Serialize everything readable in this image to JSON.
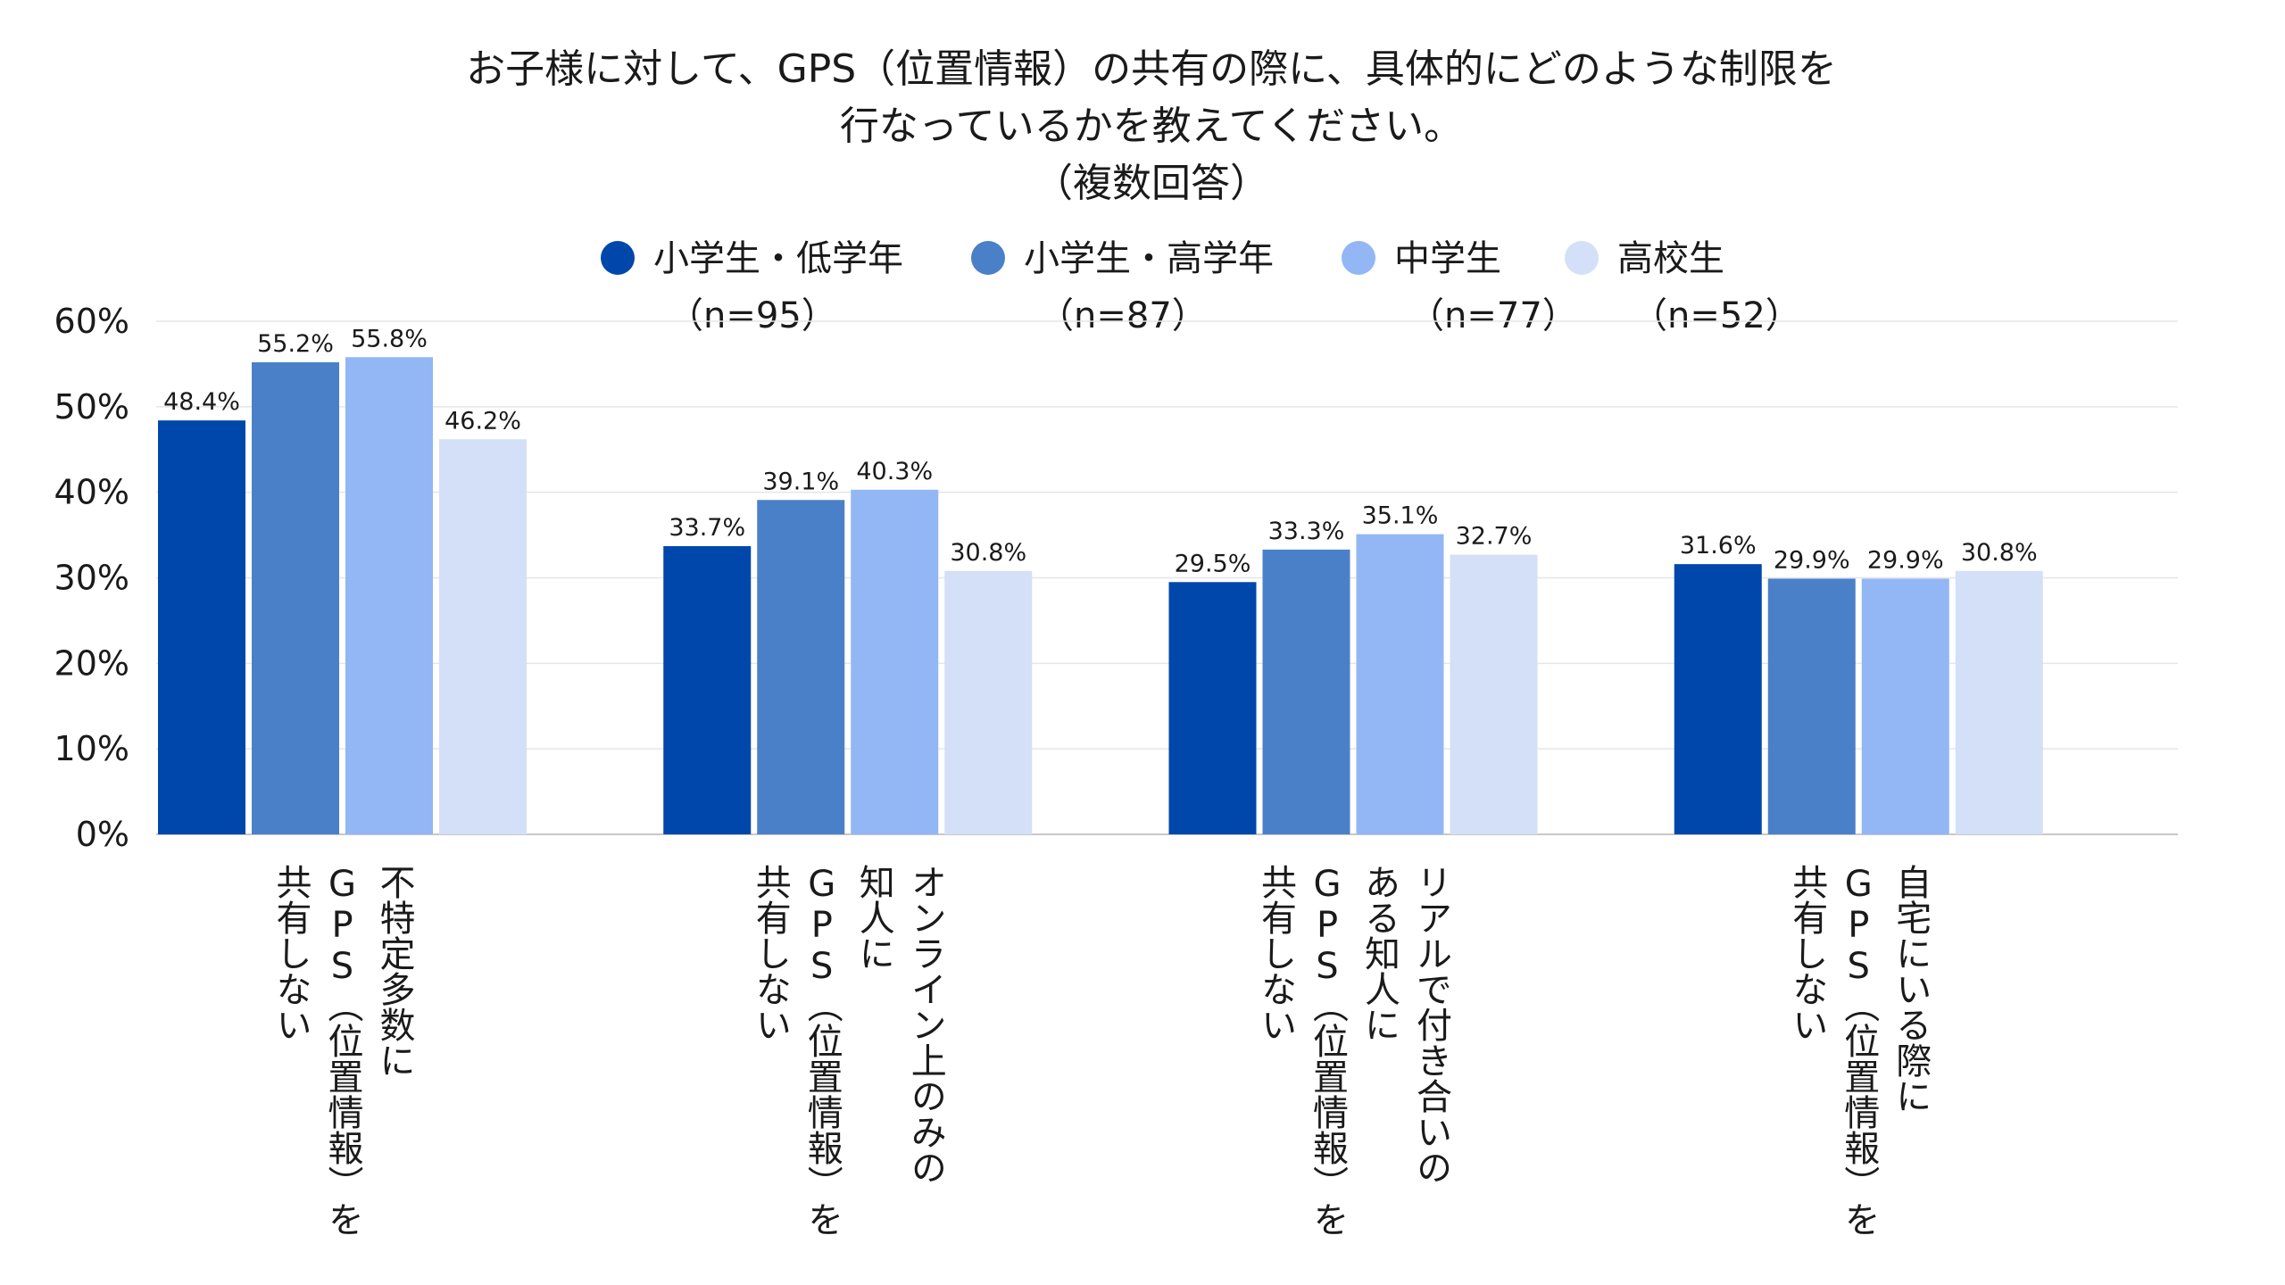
{
  "chart_data": {
    "type": "bar",
    "title": [
      "お子様に対して、GPS（位置情報）の共有の際に、具体的にどのような制限を",
      "行なっているかを教えてください。",
      "（複数回答）"
    ],
    "categories": [
      [
        "不特定多数に",
        "GPS（位置情報）を",
        "共有しない"
      ],
      [
        "オンライン上のみの",
        "知人に",
        "GPS（位置情報）を",
        "共有しない"
      ],
      [
        "リアルで付き合いの",
        "ある知人に",
        "GPS（位置情報）を",
        "共有しない"
      ],
      [
        "自宅にいる際に",
        "GPS（位置情報）を",
        "共有しない"
      ]
    ],
    "series": [
      {
        "name": [
          "小学生・低学年",
          "（n=95）"
        ],
        "color": "#0047ab",
        "values": [
          48.4,
          33.7,
          29.5,
          31.6
        ],
        "labels": [
          "48.4%",
          "33.7%",
          "29.5%",
          "31.6%"
        ]
      },
      {
        "name": [
          "小学生・高学年",
          "（n=87）"
        ],
        "color": "#4a80c8",
        "values": [
          55.2,
          39.1,
          33.3,
          29.9
        ],
        "labels": [
          "55.2%",
          "39.1%",
          "33.3%",
          "29.9%"
        ]
      },
      {
        "name": [
          "中学生",
          "（n=77）"
        ],
        "color": "#93b6f5",
        "values": [
          55.8,
          40.3,
          35.1,
          29.9
        ],
        "labels": [
          "55.8%",
          "40.3%",
          "35.1%",
          "29.9%"
        ]
      },
      {
        "name": [
          "高校生",
          "（n=52）"
        ],
        "color": "#d4e0f7",
        "values": [
          46.2,
          30.8,
          32.7,
          30.8
        ],
        "labels": [
          "46.2%",
          "30.8%",
          "32.7%",
          "30.8%"
        ]
      }
    ],
    "yticks": [
      "0%",
      "10%",
      "20%",
      "30%",
      "40%",
      "50%",
      "60%"
    ],
    "ylim": [
      0,
      60
    ],
    "grid": true,
    "legend_position": "top"
  }
}
